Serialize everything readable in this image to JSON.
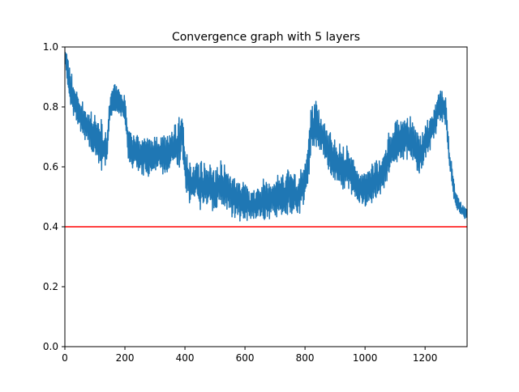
{
  "chart_data": {
    "type": "line",
    "title": "Convergence graph with 5 layers",
    "xlabel": "",
    "ylabel": "",
    "xlim": [
      0,
      1340
    ],
    "ylim": [
      0.0,
      1.0
    ],
    "grid": false,
    "x_ticks": [
      0,
      200,
      400,
      600,
      800,
      1000,
      1200
    ],
    "x_tick_labels": [
      "0",
      "200",
      "400",
      "600",
      "800",
      "1000",
      "1200"
    ],
    "y_ticks": [
      0.0,
      0.2,
      0.4,
      0.6,
      0.8,
      1.0
    ],
    "y_tick_labels": [
      "0.0",
      "0.2",
      "0.4",
      "0.6",
      "0.8",
      "1.0"
    ],
    "series": [
      {
        "color": "#1f77b4",
        "x": [
          0,
          10,
          20,
          40,
          60,
          80,
          100,
          120,
          140,
          150,
          160,
          180,
          200,
          210,
          220,
          240,
          260,
          280,
          300,
          320,
          340,
          360,
          380,
          390,
          400,
          410,
          420,
          440,
          460,
          480,
          500,
          520,
          540,
          560,
          580,
          600,
          620,
          640,
          660,
          680,
          700,
          720,
          740,
          760,
          780,
          800,
          810,
          820,
          840,
          860,
          880,
          900,
          920,
          940,
          960,
          980,
          1000,
          1020,
          1040,
          1060,
          1080,
          1100,
          1120,
          1140,
          1160,
          1180,
          1200,
          1220,
          1240,
          1250,
          1260,
          1270,
          1280,
          1300,
          1320,
          1340
        ],
        "y_center": [
          0.98,
          0.92,
          0.86,
          0.8,
          0.76,
          0.72,
          0.7,
          0.68,
          0.66,
          0.8,
          0.82,
          0.82,
          0.8,
          0.68,
          0.66,
          0.65,
          0.64,
          0.63,
          0.64,
          0.64,
          0.64,
          0.66,
          0.68,
          0.72,
          0.6,
          0.56,
          0.54,
          0.55,
          0.53,
          0.55,
          0.52,
          0.55,
          0.52,
          0.5,
          0.49,
          0.48,
          0.47,
          0.47,
          0.49,
          0.49,
          0.5,
          0.51,
          0.52,
          0.51,
          0.5,
          0.55,
          0.62,
          0.72,
          0.74,
          0.7,
          0.64,
          0.62,
          0.6,
          0.6,
          0.56,
          0.53,
          0.52,
          0.54,
          0.56,
          0.58,
          0.64,
          0.68,
          0.68,
          0.7,
          0.68,
          0.64,
          0.68,
          0.72,
          0.78,
          0.8,
          0.8,
          0.78,
          0.64,
          0.5,
          0.46,
          0.44
        ],
        "y_spread": [
          0.02,
          0.05,
          0.06,
          0.05,
          0.05,
          0.06,
          0.06,
          0.08,
          0.05,
          0.04,
          0.05,
          0.04,
          0.04,
          0.05,
          0.05,
          0.06,
          0.06,
          0.06,
          0.06,
          0.06,
          0.06,
          0.06,
          0.08,
          0.06,
          0.06,
          0.07,
          0.06,
          0.06,
          0.08,
          0.07,
          0.07,
          0.07,
          0.07,
          0.06,
          0.06,
          0.06,
          0.05,
          0.05,
          0.06,
          0.06,
          0.06,
          0.07,
          0.08,
          0.06,
          0.06,
          0.07,
          0.07,
          0.07,
          0.07,
          0.07,
          0.07,
          0.06,
          0.07,
          0.07,
          0.06,
          0.06,
          0.05,
          0.06,
          0.06,
          0.06,
          0.07,
          0.07,
          0.06,
          0.07,
          0.07,
          0.06,
          0.06,
          0.05,
          0.05,
          0.05,
          0.05,
          0.04,
          0.04,
          0.03,
          0.02,
          0.02
        ]
      },
      {
        "color": "#ff0000",
        "x": [
          0,
          1340
        ],
        "y": [
          0.4,
          0.4
        ]
      }
    ]
  }
}
